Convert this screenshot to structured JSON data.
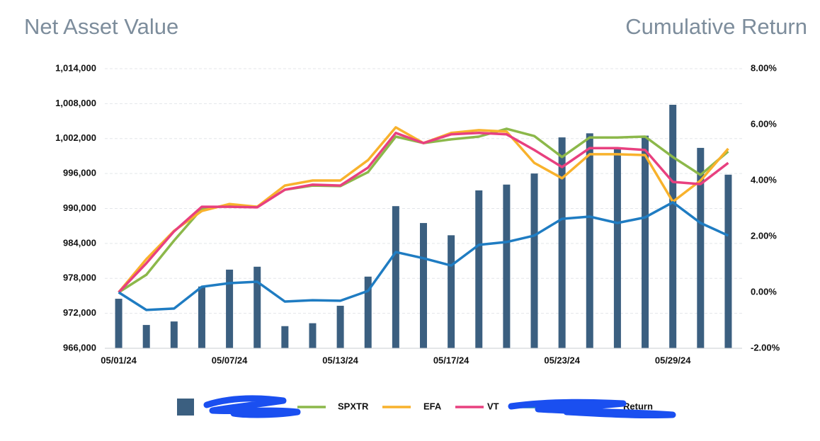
{
  "chart_data": {
    "type": "bar-line",
    "title": "Net Asset Value",
    "title_right": "Cumulative Return",
    "categories": [
      "05/01/24",
      null,
      null,
      null,
      "05/07/24",
      null,
      null,
      null,
      "05/13/24",
      null,
      null,
      null,
      "05/17/24",
      null,
      null,
      null,
      "05/23/24",
      null,
      null,
      null,
      "05/29/24",
      null,
      null
    ],
    "ylim": [
      966000,
      1014000
    ],
    "yticks": [
      {
        "value": 966000,
        "label": "966,000"
      },
      {
        "value": 972000,
        "label": "972,000"
      },
      {
        "value": 978000,
        "label": "978,000"
      },
      {
        "value": 984000,
        "label": "984,000"
      },
      {
        "value": 990000,
        "label": "990,000"
      },
      {
        "value": 996000,
        "label": "996,000"
      },
      {
        "value": 1002000,
        "label": "1,002,000"
      },
      {
        "value": 1008000,
        "label": "1,008,000"
      },
      {
        "value": 1014000,
        "label": "1,014,000"
      }
    ],
    "y2lim": [
      -2,
      8
    ],
    "y2ticks": [
      {
        "value": -2,
        "label": "-2.00%"
      },
      {
        "value": 0,
        "label": "0.00%"
      },
      {
        "value": 2,
        "label": "2.00%"
      },
      {
        "value": 4,
        "label": "4.00%"
      },
      {
        "value": 6,
        "label": "6.00%"
      },
      {
        "value": 8,
        "label": "8.00%"
      }
    ],
    "grid": true,
    "series": [
      {
        "name": null,
        "type": "bar",
        "color": "#3b5f80",
        "values": [
          974500,
          970000,
          970600,
          976600,
          979500,
          980000,
          969800,
          970300,
          973300,
          978300,
          990400,
          987500,
          985400,
          993100,
          994100,
          996000,
          1002200,
          1002900,
          1000300,
          1002500,
          1007800,
          1000400,
          995800
        ]
      },
      {
        "name": "SPXTR",
        "type": "line",
        "axis": "y2",
        "color": "#8cb84a",
        "values": [
          0,
          0.63,
          1.85,
          2.99,
          3.11,
          3.06,
          3.67,
          3.82,
          3.8,
          4.3,
          5.57,
          5.34,
          5.47,
          5.57,
          5.85,
          5.59,
          4.84,
          5.54,
          5.54,
          5.57,
          4.84,
          4.2,
          5.04
        ]
      },
      {
        "name": "EFA",
        "type": "line",
        "axis": "y2",
        "color": "#f8b22c",
        "values": [
          0,
          1.19,
          2.2,
          2.91,
          3.16,
          3.06,
          3.82,
          4.0,
          4.0,
          4.73,
          5.9,
          5.34,
          5.7,
          5.8,
          5.75,
          4.63,
          4.08,
          4.94,
          4.94,
          4.91,
          3.24,
          4.0,
          5.14
        ]
      },
      {
        "name": "VT",
        "type": "line",
        "axis": "y2",
        "color": "#e8407f",
        "values": [
          0,
          1.04,
          2.18,
          3.06,
          3.06,
          3.04,
          3.67,
          3.85,
          3.82,
          4.46,
          5.7,
          5.34,
          5.65,
          5.7,
          5.65,
          5.09,
          4.48,
          5.16,
          5.16,
          5.09,
          3.95,
          3.87,
          4.63
        ]
      },
      {
        "name": "Return",
        "type": "line",
        "axis": "y2",
        "color": "#1f7cc2",
        "values": [
          0,
          -0.63,
          -0.58,
          0.2,
          0.33,
          0.38,
          -0.33,
          -0.28,
          -0.3,
          0.05,
          1.44,
          1.22,
          0.96,
          1.7,
          1.8,
          2.03,
          2.63,
          2.71,
          2.48,
          2.68,
          3.22,
          2.48,
          2.03
        ]
      }
    ]
  }
}
